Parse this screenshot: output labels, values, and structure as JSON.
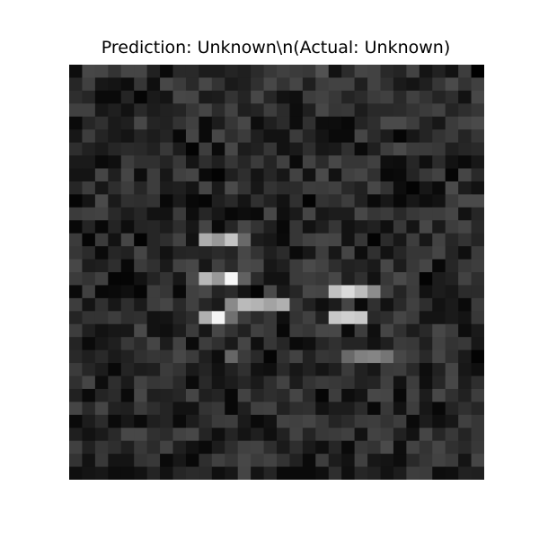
{
  "chart_data": {
    "type": "heatmap",
    "title": "Prediction: Unknown\\n(Actual: Unknown)",
    "xlabel": "",
    "ylabel": "",
    "axes_visible": false,
    "colormap": "gray",
    "value_range": [
      0,
      1
    ],
    "rows": 32,
    "cols": 32,
    "values": [
      [
        0.05,
        0.28,
        0.27,
        0.2,
        0.27,
        0.27,
        0.13,
        0.04,
        0.16,
        0.16,
        0.11,
        0.11,
        0.14,
        0.12,
        0.17,
        0.22,
        0.25,
        0.23,
        0.22,
        0.32,
        0.07,
        0.17,
        0.27,
        0.26,
        0.16,
        0.14,
        0.26,
        0.08,
        0.13,
        0.07,
        0.24,
        0.0
      ],
      [
        0.15,
        0.25,
        0.09,
        0.08,
        0.05,
        0.21,
        0.06,
        0.28,
        0.23,
        0.16,
        0.28,
        0.2,
        0.1,
        0.12,
        0.19,
        0.28,
        0.2,
        0.27,
        0.12,
        0.24,
        0.26,
        0.26,
        0.12,
        0.26,
        0.19,
        0.1,
        0.08,
        0.12,
        0.21,
        0.29,
        0.2,
        0.25
      ],
      [
        0.18,
        0.15,
        0.04,
        0.04,
        0.14,
        0.02,
        0.1,
        0.08,
        0.28,
        0.27,
        0.1,
        0.11,
        0.2,
        0.14,
        0.28,
        0.15,
        0.07,
        0.06,
        0.24,
        0.26,
        0.22,
        0.14,
        0.17,
        0.23,
        0.25,
        0.16,
        0.25,
        0.2,
        0.14,
        0.18,
        0.07,
        0.28
      ],
      [
        0.25,
        0.25,
        0.09,
        0.12,
        0.07,
        0.16,
        0.11,
        0.13,
        0.14,
        0.21,
        0.27,
        0.17,
        0.26,
        0.12,
        0.14,
        0.24,
        0.17,
        0.05,
        0.12,
        0.28,
        0.21,
        0.22,
        0.11,
        0.16,
        0.16,
        0.17,
        0.2,
        0.23,
        0.26,
        0.14,
        0.18,
        0.21
      ],
      [
        0.04,
        0.15,
        0.19,
        0.1,
        0.12,
        0.28,
        0.14,
        0.13,
        0.2,
        0.25,
        0.04,
        0.11,
        0.21,
        0.28,
        0.05,
        0.12,
        0.17,
        0.05,
        0.19,
        0.05,
        0.05,
        0.03,
        0.14,
        0.18,
        0.29,
        0.29,
        0.24,
        0.14,
        0.09,
        0.23,
        0.27,
        0.29
      ],
      [
        0.09,
        0.24,
        0.14,
        0.1,
        0.08,
        0.14,
        0.11,
        0.14,
        0.03,
        0.27,
        0.04,
        0.28,
        0.18,
        0.23,
        0.12,
        0.07,
        0.07,
        0.23,
        0.14,
        0.08,
        0.04,
        0.04,
        0.27,
        0.17,
        0.11,
        0.02,
        0.09,
        0.14,
        0.2,
        0.23,
        0.14,
        0.21
      ],
      [
        0.18,
        0.13,
        0.1,
        0.15,
        0.17,
        0.16,
        0.13,
        0.22,
        0.11,
        0.01,
        0.24,
        0.04,
        0.28,
        0.11,
        0.13,
        0.21,
        0.07,
        0.1,
        0.18,
        0.09,
        0.1,
        0.19,
        0.04,
        0.12,
        0.24,
        0.29,
        0.23,
        0.23,
        0.22,
        0.12,
        0.15,
        0.16
      ],
      [
        0.1,
        0.1,
        0.04,
        0.06,
        0.24,
        0.19,
        0.19,
        0.14,
        0.22,
        0.08,
        0.18,
        0.12,
        0.21,
        0.15,
        0.23,
        0.14,
        0.25,
        0.04,
        0.26,
        0.17,
        0.28,
        0.21,
        0.21,
        0.25,
        0.06,
        0.05,
        0.15,
        0.06,
        0.17,
        0.07,
        0.04,
        0.09
      ],
      [
        0.08,
        0.08,
        0.27,
        0.12,
        0.27,
        0.05,
        0.24,
        0.09,
        0.25,
        0.27,
        0.04,
        0.01,
        0.12,
        0.18,
        0.08,
        0.15,
        0.09,
        0.26,
        0.07,
        0.29,
        0.07,
        0.25,
        0.27,
        0.19,
        0.03,
        0.04,
        0.14,
        0.22,
        0.26,
        0.02,
        0.27,
        0.16
      ],
      [
        0.15,
        0.24,
        0.09,
        0.18,
        0.24,
        0.15,
        0.24,
        0.11,
        0.12,
        0.08,
        0.27,
        0.1,
        0.29,
        0.2,
        0.09,
        0.2,
        0.17,
        0.17,
        0.24,
        0.23,
        0.25,
        0.16,
        0.13,
        0.28,
        0.2,
        0.05,
        0.01,
        0.09,
        0.04,
        0.29,
        0.11,
        0.07
      ],
      [
        0.02,
        0.08,
        0.29,
        0.1,
        0.19,
        0.18,
        0.2,
        0.03,
        0.1,
        0.03,
        0.02,
        0.12,
        0.16,
        0.08,
        0.19,
        0.13,
        0.07,
        0.19,
        0.01,
        0.2,
        0.18,
        0.24,
        0.13,
        0.04,
        0.09,
        0.03,
        0.09,
        0.05,
        0.07,
        0.23,
        0.29,
        0.29
      ],
      [
        0.23,
        0.25,
        0.26,
        0.16,
        0.11,
        0.15,
        0.07,
        0.07,
        0.23,
        0.05,
        0.15,
        0.09,
        0.03,
        0.05,
        0.04,
        0.28,
        0.06,
        0.1,
        0.27,
        0.09,
        0.11,
        0.11,
        0.28,
        0.21,
        0.23,
        0.16,
        0.22,
        0.24,
        0.24,
        0.27,
        0.07,
        0.15
      ],
      [
        0.03,
        0.14,
        0.03,
        0.14,
        0.05,
        0.14,
        0.15,
        0.11,
        0.18,
        0.09,
        0.27,
        0.04,
        0.15,
        0.28,
        0.2,
        0.12,
        0.03,
        0.21,
        0.07,
        0.12,
        0.21,
        0.07,
        0.1,
        0.13,
        0.06,
        0.22,
        0.08,
        0.28,
        0.1,
        0.24,
        0.27,
        0.16
      ],
      [
        0.23,
        0.02,
        0.23,
        0.07,
        0.27,
        0.01,
        0.15,
        0.18,
        0.26,
        0.07,
        0.68,
        0.6,
        0.77,
        0.41,
        0.11,
        0.09,
        0.04,
        0.21,
        0.26,
        0.28,
        0.27,
        0.07,
        0.21,
        0.01,
        0.17,
        0.09,
        0.24,
        0.09,
        0.26,
        0.15,
        0.2,
        0.14
      ],
      [
        0.21,
        0.17,
        0.04,
        0.15,
        0.13,
        0.27,
        0.15,
        0.07,
        0.14,
        0.15,
        0.14,
        0.17,
        0.14,
        0.28,
        0.2,
        0.12,
        0.17,
        0.04,
        0.09,
        0.24,
        0.09,
        0.27,
        0.05,
        0.19,
        0.07,
        0.15,
        0.21,
        0.21,
        0.27,
        0.14,
        0.06,
        0.23
      ],
      [
        0.28,
        0.11,
        0.12,
        0.18,
        0.03,
        0.23,
        0.19,
        0.1,
        0.26,
        0.28,
        0.09,
        0.25,
        0.17,
        0.29,
        0.28,
        0.09,
        0.12,
        0.23,
        0.29,
        0.26,
        0.18,
        0.13,
        0.14,
        0.1,
        0.28,
        0.11,
        0.22,
        0.27,
        0.03,
        0.15,
        0.22,
        0.24
      ],
      [
        0.23,
        0.2,
        0.25,
        0.02,
        0.02,
        0.07,
        0.14,
        0.2,
        0.09,
        0.29,
        0.72,
        0.6,
        0.97,
        0.38,
        0.17,
        0.07,
        0.07,
        0.23,
        0.24,
        0.22,
        0.28,
        0.12,
        0.19,
        0.07,
        0.22,
        0.29,
        0.24,
        0.01,
        0.11,
        0.13,
        0.26,
        0.18
      ],
      [
        0.04,
        0.25,
        0.03,
        0.04,
        0.06,
        0.02,
        0.24,
        0.21,
        0.03,
        0.25,
        0.28,
        0.14,
        0.17,
        0.08,
        0.01,
        0.29,
        0.1,
        0.15,
        0.28,
        0.27,
        0.76,
        0.86,
        0.74,
        0.55,
        0.25,
        0.14,
        0.23,
        0.07,
        0.11,
        0.09,
        0.17,
        0.17
      ],
      [
        0.24,
        0.08,
        0.19,
        0.09,
        0.18,
        0.1,
        0.24,
        0.27,
        0.16,
        0.25,
        0.15,
        0.1,
        0.54,
        0.73,
        0.7,
        0.64,
        0.69,
        0.22,
        0.13,
        0.06,
        0.11,
        0.27,
        0.04,
        0.19,
        0.07,
        0.16,
        0.25,
        0.18,
        0.07,
        0.1,
        0.04,
        0.23
      ],
      [
        0.14,
        0.2,
        0.2,
        0.24,
        0.18,
        0.19,
        0.07,
        0.08,
        0.14,
        0.18,
        0.69,
        0.96,
        0.44,
        0.24,
        0.17,
        0.22,
        0.06,
        0.2,
        0.25,
        0.13,
        0.78,
        0.81,
        0.79,
        0.16,
        0.18,
        0.27,
        0.23,
        0.08,
        0.08,
        0.1,
        0.08,
        0.22
      ],
      [
        0.24,
        0.12,
        0.07,
        0.09,
        0.09,
        0.29,
        0.07,
        0.06,
        0.11,
        0.23,
        0.09,
        0.28,
        0.2,
        0.13,
        0.25,
        0.22,
        0.03,
        0.23,
        0.21,
        0.28,
        0.28,
        0.04,
        0.24,
        0.06,
        0.27,
        0.19,
        0.11,
        0.16,
        0.28,
        0.23,
        0.05,
        0.1
      ],
      [
        0.14,
        0.04,
        0.09,
        0.12,
        0.22,
        0.17,
        0.27,
        0.11,
        0.26,
        0.04,
        0.24,
        0.19,
        0.1,
        0.27,
        0.06,
        0.21,
        0.15,
        0.04,
        0.06,
        0.15,
        0.19,
        0.14,
        0.14,
        0.07,
        0.12,
        0.23,
        0.22,
        0.12,
        0.26,
        0.2,
        0.22,
        0.09
      ],
      [
        0.16,
        0.12,
        0.16,
        0.1,
        0.13,
        0.19,
        0.21,
        0.2,
        0.28,
        0.23,
        0.12,
        0.05,
        0.4,
        0.23,
        0.16,
        0.02,
        0.19,
        0.26,
        0.13,
        0.21,
        0.2,
        0.41,
        0.5,
        0.52,
        0.46,
        0.28,
        0.24,
        0.16,
        0.27,
        0.19,
        0.1,
        0.01
      ],
      [
        0.23,
        0.15,
        0.11,
        0.03,
        0.14,
        0.11,
        0.12,
        0.23,
        0.2,
        0.1,
        0.14,
        0.07,
        0.13,
        0.19,
        0.07,
        0.06,
        0.16,
        0.09,
        0.13,
        0.08,
        0.12,
        0.23,
        0.13,
        0.09,
        0.23,
        0.24,
        0.16,
        0.05,
        0.13,
        0.27,
        0.09,
        0.06
      ],
      [
        0.19,
        0.27,
        0.05,
        0.18,
        0.1,
        0.26,
        0.21,
        0.22,
        0.16,
        0.04,
        0.16,
        0.08,
        0.11,
        0.15,
        0.1,
        0.18,
        0.26,
        0.11,
        0.2,
        0.23,
        0.22,
        0.2,
        0.13,
        0.14,
        0.25,
        0.07,
        0.24,
        0.06,
        0.15,
        0.28,
        0.11,
        0.18
      ],
      [
        0.13,
        0.04,
        0.14,
        0.17,
        0.04,
        0.28,
        0.12,
        0.13,
        0.15,
        0.27,
        0.12,
        0.14,
        0.03,
        0.26,
        0.15,
        0.18,
        0.16,
        0.27,
        0.16,
        0.02,
        0.24,
        0.05,
        0.08,
        0.28,
        0.27,
        0.03,
        0.26,
        0.11,
        0.28,
        0.19,
        0.13,
        0.24
      ],
      [
        0.27,
        0.16,
        0.27,
        0.13,
        0.12,
        0.23,
        0.18,
        0.14,
        0.07,
        0.07,
        0.2,
        0.22,
        0.03,
        0.12,
        0.25,
        0.26,
        0.13,
        0.18,
        0.19,
        0.07,
        0.11,
        0.11,
        0.17,
        0.03,
        0.22,
        0.07,
        0.24,
        0.09,
        0.03,
        0.14,
        0.19,
        0.15
      ],
      [
        0.04,
        0.11,
        0.17,
        0.04,
        0.09,
        0.04,
        0.12,
        0.14,
        0.04,
        0.11,
        0.17,
        0.23,
        0.24,
        0.1,
        0.04,
        0.07,
        0.26,
        0.25,
        0.27,
        0.22,
        0.14,
        0.17,
        0.23,
        0.24,
        0.2,
        0.24,
        0.04,
        0.11,
        0.06,
        0.09,
        0.25,
        0.21
      ],
      [
        0.12,
        0.07,
        0.1,
        0.16,
        0.28,
        0.28,
        0.19,
        0.17,
        0.26,
        0.28,
        0.14,
        0.06,
        0.14,
        0.08,
        0.12,
        0.06,
        0.13,
        0.26,
        0.14,
        0.22,
        0.23,
        0.25,
        0.07,
        0.26,
        0.24,
        0.13,
        0.07,
        0.27,
        0.15,
        0.22,
        0.14,
        0.21
      ],
      [
        0.25,
        0.13,
        0.21,
        0.18,
        0.12,
        0.22,
        0.17,
        0.26,
        0.12,
        0.07,
        0.04,
        0.11,
        0.18,
        0.25,
        0.26,
        0.18,
        0.1,
        0.18,
        0.1,
        0.06,
        0.15,
        0.04,
        0.22,
        0.2,
        0.29,
        0.05,
        0.26,
        0.2,
        0.27,
        0.19,
        0.16,
        0.22
      ],
      [
        0.2,
        0.07,
        0.22,
        0.08,
        0.08,
        0.2,
        0.22,
        0.04,
        0.09,
        0.03,
        0.18,
        0.25,
        0.21,
        0.28,
        0.23,
        0.26,
        0.2,
        0.13,
        0.04,
        0.24,
        0.11,
        0.07,
        0.25,
        0.09,
        0.08,
        0.05,
        0.16,
        0.21,
        0.26,
        0.23,
        0.08,
        0.27
      ],
      [
        0.06,
        0.08,
        0.09,
        0.05,
        0.05,
        0.07,
        0.14,
        0.07,
        0.15,
        0.17,
        0.16,
        0.06,
        0.09,
        0.27,
        0.08,
        0.14,
        0.04,
        0.04,
        0.04,
        0.06,
        0.18,
        0.06,
        0.15,
        0.13,
        0.07,
        0.11,
        0.24,
        0.23,
        0.05,
        0.06,
        0.13,
        0.12
      ]
    ]
  }
}
